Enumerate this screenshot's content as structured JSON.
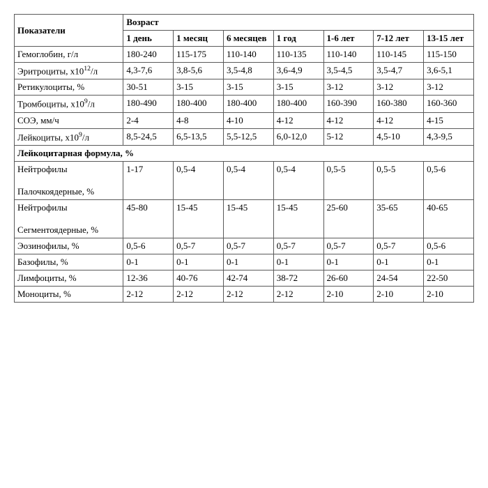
{
  "header": {
    "indicator": "Показатели",
    "age_group": "Возраст",
    "ages": [
      "1 день",
      "1 месяц",
      "6 месяцев",
      "1 год",
      "1-6 лет",
      "7-12 лет",
      "13-15 лет"
    ]
  },
  "rows": [
    {
      "label": "Гемоглобин, г/л",
      "v": [
        "180-240",
        "115-175",
        "110-140",
        "110-135",
        "110-140",
        "110-145",
        "115-150"
      ]
    },
    {
      "label": "Эритроциты, х10¹²/л",
      "v": [
        "4,3-7,6",
        "3,8-5,6",
        "3,5-4,8",
        "3,6-4,9",
        "3,5-4,5",
        "3,5-4,7",
        "3,6-5,1"
      ]
    },
    {
      "label": "Ретикулоциты, %",
      "v": [
        "30-51",
        "3-15",
        "3-15",
        "3-15",
        "3-12",
        "3-12",
        "3-12"
      ]
    },
    {
      "label": "Тромбоциты, х10⁹/л",
      "v": [
        "180-490",
        "180-400",
        "180-400",
        "180-400",
        "160-390",
        "160-380",
        "160-360"
      ]
    },
    {
      "label": "СОЭ, мм/ч",
      "v": [
        "2-4",
        "4-8",
        "4-10",
        "4-12",
        "4-12",
        "4-12",
        "4-15"
      ]
    },
    {
      "label": "Лейкоциты, х10⁹/л",
      "v": [
        "8,5-24,5",
        "6,5-13,5",
        "5,5-12,5",
        "6,0-12,0",
        "5-12",
        "4,5-10",
        "4,3-9,5"
      ]
    }
  ],
  "section": "Лейкоцитарная формула, %",
  "rows2": [
    {
      "label": "Нейтрофилы Палочкоядерные, %",
      "v": [
        "1-17",
        "0,5-4",
        "0,5-4",
        "0,5-4",
        "0,5-5",
        "0,5-5",
        "0,5-6"
      ],
      "tall": true
    },
    {
      "label": "Нейтрофилы Сегментоядерные, %",
      "v": [
        "45-80",
        "15-45",
        "15-45",
        "15-45",
        "25-60",
        "35-65",
        "40-65"
      ],
      "tall": true
    },
    {
      "label": "Эозинофилы, %",
      "v": [
        "0,5-6",
        "0,5-7",
        "0,5-7",
        "0,5-7",
        "0,5-7",
        "0,5-7",
        "0,5-6"
      ]
    },
    {
      "label": "Базофилы, %",
      "v": [
        "0-1",
        "0-1",
        "0-1",
        "0-1",
        "0-1",
        "0-1",
        "0-1"
      ]
    },
    {
      "label": "Лимфоциты, %",
      "v": [
        "12-36",
        "40-76",
        "42-74",
        "38-72",
        "26-60",
        "24-54",
        "22-50"
      ]
    },
    {
      "label": "Моноциты, %",
      "v": [
        "2-12",
        "2-12",
        "2-12",
        "2-12",
        "2-10",
        "2-10",
        "2-10"
      ]
    }
  ],
  "special_labels": {
    "neut_band_1": "Нейтрофилы",
    "neut_band_2": "Палочкоядерные, %",
    "neut_seg_1": "Нейтрофилы",
    "neut_seg_2": "Сегментоядерные, %",
    "eryth_prefix": "Эритроциты, х10",
    "eryth_sup": "12",
    "eryth_suffix": "/л",
    "thromb_prefix": "Тромбоциты, х10",
    "thromb_sup": "9",
    "thromb_suffix": "/л",
    "leuk_prefix": "Лейкоциты, х10",
    "leuk_sup": "9",
    "leuk_suffix": "/л"
  }
}
